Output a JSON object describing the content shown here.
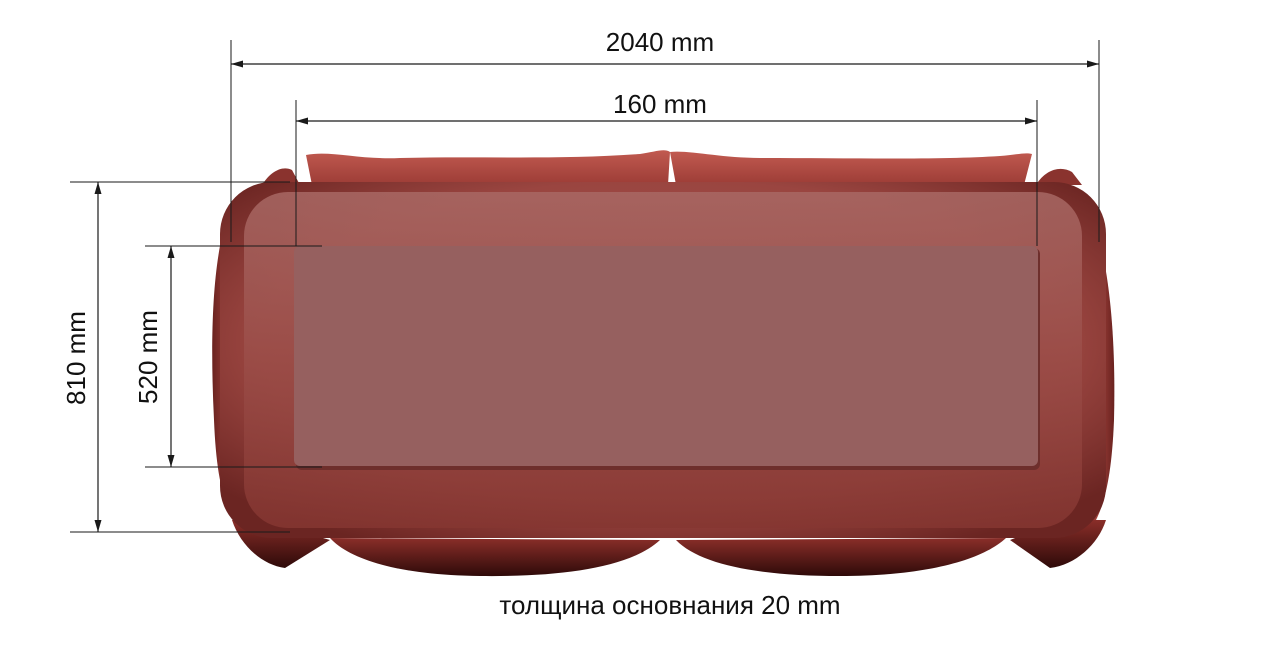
{
  "dimensions": {
    "overall_width": "2040 mm",
    "inner_width": "160 mm",
    "overall_depth": "810 mm",
    "inner_depth": "520 mm"
  },
  "caption": "толщина основнания 20 mm",
  "colors": {
    "sofa_body": "#a34a45",
    "sofa_dark": "#5a1c1a",
    "cushion_top": "#94605f",
    "cushion_edge": "#7e3f3c",
    "pillow": "#b64d45",
    "dimension_line": "#1a1a1a"
  }
}
